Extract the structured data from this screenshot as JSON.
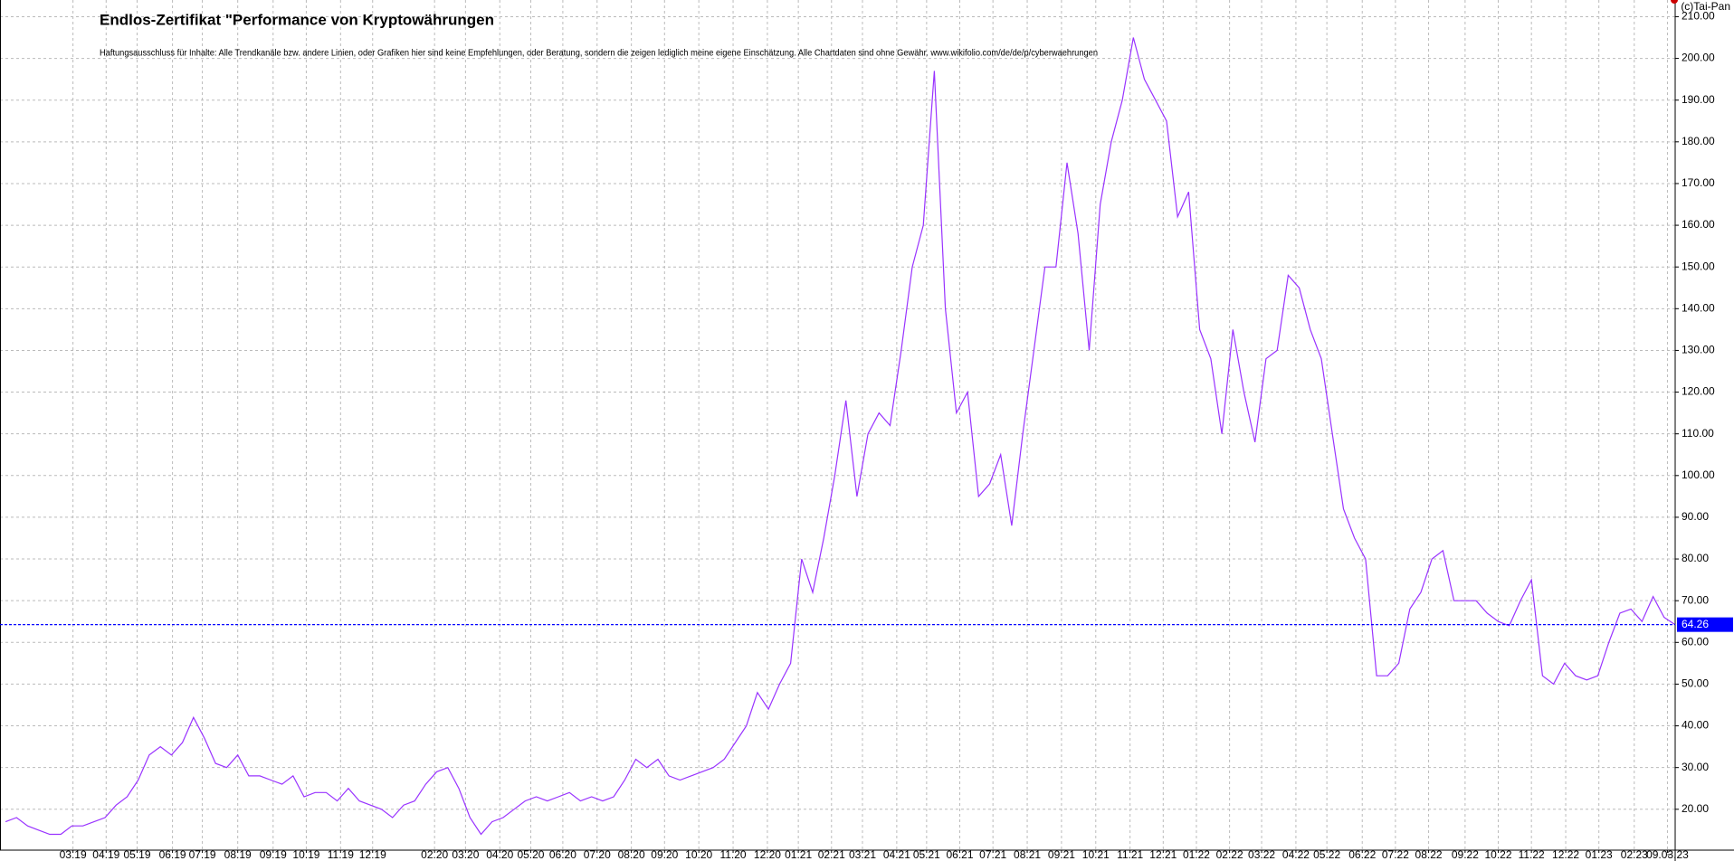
{
  "chart_data": {
    "type": "line",
    "title": "Endlos-Zertifikat \"Performance von Kryptowährungen",
    "subtitle": "Haftungsausschluss für Inhalte: Alle Trendkanäle bzw. andere Linien, oder Grafiken hier sind keine Empfehlungen, oder Beratung, sondern die zeigen lediglich meine eigene Einschätzung. Alle Chartdaten sind ohne Gewähr.  www.wikifolio.com/de/de/p/cyberwaehrungen",
    "copyright": "(c)Tai-Pan",
    "axis_end_label": "-",
    "color": "#9933ff",
    "last_value_color": "#0000ff",
    "grid": true,
    "values": [
      17,
      18,
      16,
      15,
      14,
      14,
      16,
      16,
      17,
      18,
      21,
      23,
      27,
      33,
      35,
      33,
      36,
      42,
      37,
      31,
      30,
      33,
      28,
      28,
      27,
      26,
      28,
      23,
      24,
      24,
      22,
      25,
      22,
      21,
      20,
      18,
      21,
      22,
      26,
      29,
      30,
      25,
      18,
      14,
      17,
      18,
      20,
      22,
      23,
      22,
      23,
      24,
      22,
      23,
      22,
      23,
      27,
      32,
      30,
      32,
      28,
      27,
      28,
      29,
      30,
      32,
      36,
      40,
      48,
      44,
      50,
      55,
      80,
      72,
      85,
      100,
      118,
      95,
      110,
      115,
      112,
      130,
      150,
      160,
      197,
      140,
      115,
      120,
      95,
      98,
      105,
      88,
      110,
      130,
      150,
      150,
      175,
      158,
      130,
      165,
      180,
      190,
      205,
      195,
      190,
      185,
      162,
      168,
      135,
      128,
      110,
      135,
      120,
      108,
      128,
      130,
      148,
      145,
      135,
      128,
      110,
      92,
      85,
      80,
      52,
      52,
      55,
      68,
      72,
      80,
      82,
      70,
      70,
      70,
      67,
      65,
      64,
      70,
      75,
      52,
      50,
      55,
      52,
      51,
      52,
      60,
      67,
      68,
      65,
      71,
      66,
      64.26
    ],
    "xlim": [
      -0.5,
      151
    ],
    "xticks": [
      {
        "value": 6.1,
        "label": "03.19"
      },
      {
        "value": 9.1,
        "label": "04.19"
      },
      {
        "value": 11.9,
        "label": "05.19"
      },
      {
        "value": 15.1,
        "label": "06.19"
      },
      {
        "value": 17.8,
        "label": "07.19"
      },
      {
        "value": 21,
        "label": "08.19"
      },
      {
        "value": 24.2,
        "label": "09.19"
      },
      {
        "value": 27.2,
        "label": "10.19"
      },
      {
        "value": 30.3,
        "label": "11.19"
      },
      {
        "value": 33.2,
        "label": "12.19"
      },
      {
        "value": 38.8,
        "label": "02.20"
      },
      {
        "value": 41.6,
        "label": "03.20"
      },
      {
        "value": 44.7,
        "label": "04.20"
      },
      {
        "value": 47.5,
        "label": "05.20"
      },
      {
        "value": 50.4,
        "label": "06.20"
      },
      {
        "value": 53.5,
        "label": "07.20"
      },
      {
        "value": 56.6,
        "label": "08.20"
      },
      {
        "value": 59.6,
        "label": "09.20"
      },
      {
        "value": 62.7,
        "label": "10.20"
      },
      {
        "value": 65.8,
        "label": "11.20"
      },
      {
        "value": 68.9,
        "label": "12.20"
      },
      {
        "value": 71.7,
        "label": "01.21"
      },
      {
        "value": 74.7,
        "label": "02.21"
      },
      {
        "value": 77.5,
        "label": "03.21"
      },
      {
        "value": 80.6,
        "label": "04.21"
      },
      {
        "value": 83.3,
        "label": "05.21"
      },
      {
        "value": 86.3,
        "label": "06.21"
      },
      {
        "value": 89.3,
        "label": "07.21"
      },
      {
        "value": 92.4,
        "label": "08.21"
      },
      {
        "value": 95.5,
        "label": "09.21"
      },
      {
        "value": 98.6,
        "label": "10.21"
      },
      {
        "value": 101.7,
        "label": "11.21"
      },
      {
        "value": 104.7,
        "label": "12.21"
      },
      {
        "value": 107.7,
        "label": "01.22"
      },
      {
        "value": 110.7,
        "label": "02.22"
      },
      {
        "value": 113.6,
        "label": "03.22"
      },
      {
        "value": 116.7,
        "label": "04.22"
      },
      {
        "value": 119.5,
        "label": "05.22"
      },
      {
        "value": 122.7,
        "label": "06.22"
      },
      {
        "value": 125.7,
        "label": "07.22"
      },
      {
        "value": 128.7,
        "label": "08.22"
      },
      {
        "value": 132,
        "label": "09.22"
      },
      {
        "value": 135,
        "label": "10.22"
      },
      {
        "value": 138,
        "label": "11.22"
      },
      {
        "value": 141.1,
        "label": "12.22"
      },
      {
        "value": 144.1,
        "label": "01.23"
      },
      {
        "value": 147.3,
        "label": "02.23"
      },
      {
        "value": 150.3,
        "label": "09.03.23"
      }
    ],
    "ylim": [
      10.2,
      214
    ],
    "yticks": [
      {
        "value": 20,
        "label": "20.00"
      },
      {
        "value": 30,
        "label": "30.00"
      },
      {
        "value": 40,
        "label": "40.00"
      },
      {
        "value": 50,
        "label": "50.00"
      },
      {
        "value": 60,
        "label": "60.00"
      },
      {
        "value": 70,
        "label": "70.00"
      },
      {
        "value": 80,
        "label": "80.00"
      },
      {
        "value": 90,
        "label": "90.00"
      },
      {
        "value": 100,
        "label": "100.00"
      },
      {
        "value": 110,
        "label": "110.00"
      },
      {
        "value": 120,
        "label": "120.00"
      },
      {
        "value": 130,
        "label": "130.00"
      },
      {
        "value": 140,
        "label": "140.00"
      },
      {
        "value": 150,
        "label": "150.00"
      },
      {
        "value": 160,
        "label": "160.00"
      },
      {
        "value": 170,
        "label": "170.00"
      },
      {
        "value": 180,
        "label": "180.00"
      },
      {
        "value": 190,
        "label": "190.00"
      },
      {
        "value": 200,
        "label": "200.00"
      },
      {
        "value": 210,
        "label": "210.00"
      }
    ]
  }
}
